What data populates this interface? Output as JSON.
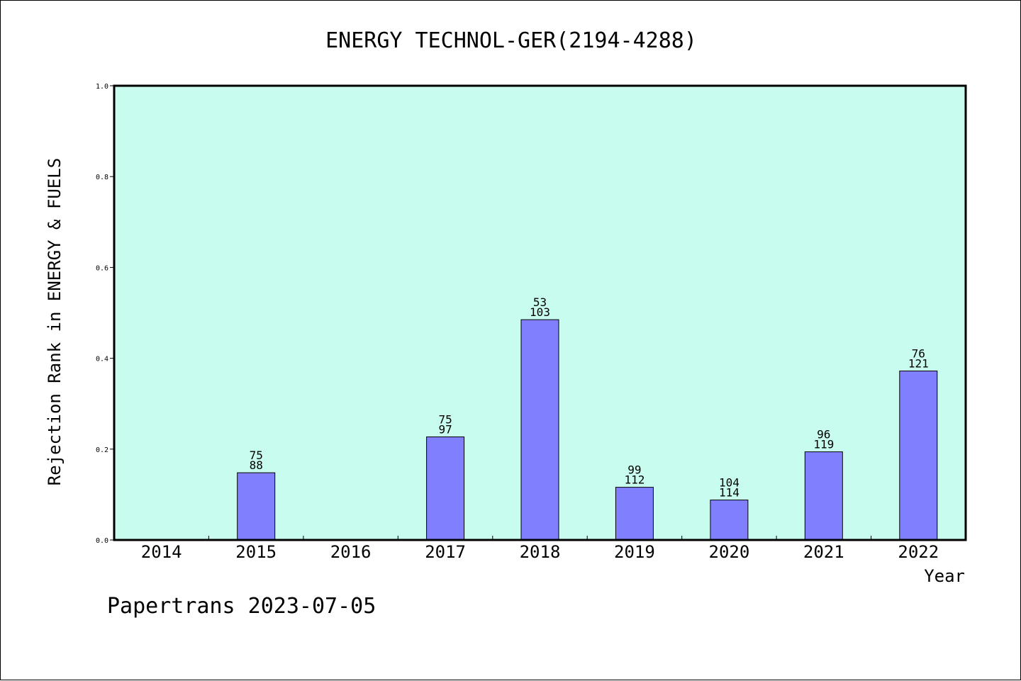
{
  "chart_data": {
    "type": "bar",
    "title": "ENERGY TECHNOL-GER(2194-4288)",
    "xlabel": "Year",
    "ylabel": "Rejection Rank in ENERGY & FUELS",
    "categories": [
      "2014",
      "2015",
      "2016",
      "2017",
      "2018",
      "2019",
      "2020",
      "2021",
      "2022"
    ],
    "values": [
      0,
      0.148,
      0,
      0.227,
      0.485,
      0.116,
      0.088,
      0.194,
      0.372
    ],
    "bar_labels": [
      [
        "",
        ""
      ],
      [
        "75",
        "88"
      ],
      [
        "",
        ""
      ],
      [
        "75",
        "97"
      ],
      [
        "53",
        "103"
      ],
      [
        "99",
        "112"
      ],
      [
        "104",
        "114"
      ],
      [
        "96",
        "119"
      ],
      [
        "76",
        "121"
      ]
    ],
    "ylim": [
      0,
      1.0
    ],
    "yticks": [
      "0.0",
      "0.2",
      "0.4",
      "0.6",
      "0.8",
      "1.0"
    ],
    "grid": false,
    "plot_background": "#c8fcee",
    "bar_color": "#8080ff",
    "footer": "Papertrans 2023-07-05"
  }
}
